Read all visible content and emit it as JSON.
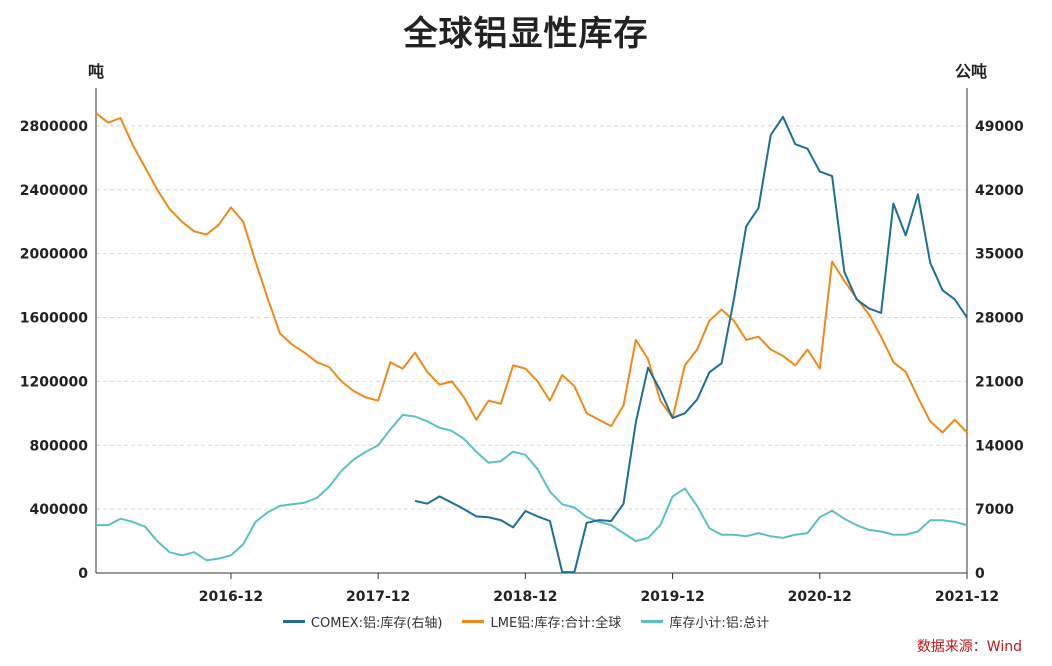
{
  "title": "全球铝显性库存",
  "left_unit": "吨",
  "right_unit": "公吨",
  "source": "数据来源：Wind",
  "chart_data": {
    "type": "line",
    "title": "全球铝显性库存",
    "ylabel": "吨",
    "y2label": "公吨",
    "x_ticks": [
      "2016-12",
      "2017-12",
      "2018-12",
      "2019-12",
      "2020-12",
      "2021-12"
    ],
    "x_range": [
      "2016-01",
      "2021-12"
    ],
    "ylim": [
      0,
      3000000
    ],
    "y_ticks": [
      0,
      400000,
      800000,
      1200000,
      1600000,
      2000000,
      2400000,
      2800000
    ],
    "y_tick_labels": [
      "0",
      "400000",
      "800000",
      "1200000",
      "1600000",
      "2000000",
      "2400000",
      "2800000"
    ],
    "y2lim": [
      0,
      52500
    ],
    "y2_ticks": [
      0,
      7000,
      14000,
      21000,
      28000,
      35000,
      42000,
      49000
    ],
    "y2_tick_labels": [
      "0",
      "7000",
      "14000",
      "21000",
      "28000",
      "35000",
      "42000",
      "49000"
    ],
    "grid": true,
    "legend_position": "bottom",
    "series": [
      {
        "name": "COMEX:铝:库存(右轴)",
        "axis": "right",
        "color": "#1f6e97",
        "points": [
          [
            "2018-03",
            7900
          ],
          [
            "2018-04",
            7600
          ],
          [
            "2018-05",
            8400
          ],
          [
            "2018-06",
            7700
          ],
          [
            "2018-07",
            7000
          ],
          [
            "2018-08",
            6200
          ],
          [
            "2018-09",
            6100
          ],
          [
            "2018-10",
            5800
          ],
          [
            "2018-11",
            5000
          ],
          [
            "2018-12",
            6800
          ],
          [
            "2019-01",
            6200
          ],
          [
            "2019-02",
            5700
          ],
          [
            "2019-03",
            100
          ],
          [
            "2019-04",
            100
          ],
          [
            "2019-05",
            5500
          ],
          [
            "2019-06",
            5800
          ],
          [
            "2019-07",
            5700
          ],
          [
            "2019-08",
            7600
          ],
          [
            "2019-09",
            16500
          ],
          [
            "2019-10",
            22500
          ],
          [
            "2019-11",
            20000
          ],
          [
            "2019-12",
            17000
          ],
          [
            "2020-01",
            17500
          ],
          [
            "2020-02",
            19000
          ],
          [
            "2020-03",
            22000
          ],
          [
            "2020-04",
            23000
          ],
          [
            "2020-05",
            30000
          ],
          [
            "2020-06",
            38000
          ],
          [
            "2020-07",
            40000
          ],
          [
            "2020-08",
            48000
          ],
          [
            "2020-09",
            50000
          ],
          [
            "2020-10",
            47000
          ],
          [
            "2020-11",
            46500
          ],
          [
            "2020-12",
            44000
          ],
          [
            "2021-01",
            43500
          ],
          [
            "2021-02",
            33000
          ],
          [
            "2021-03",
            30000
          ],
          [
            "2021-04",
            29000
          ],
          [
            "2021-05",
            28500
          ],
          [
            "2021-06",
            40500
          ],
          [
            "2021-07",
            37000
          ],
          [
            "2021-08",
            41500
          ],
          [
            "2021-09",
            34000
          ],
          [
            "2021-10",
            31000
          ],
          [
            "2021-11",
            30000
          ],
          [
            "2021-12",
            28000
          ]
        ]
      },
      {
        "name": "LME铝:库存:合计:全球",
        "axis": "left",
        "color": "#f0891a",
        "points": [
          [
            "2016-01",
            2880000
          ],
          [
            "2016-02",
            2820000
          ],
          [
            "2016-03",
            2850000
          ],
          [
            "2016-04",
            2680000
          ],
          [
            "2016-05",
            2540000
          ],
          [
            "2016-06",
            2400000
          ],
          [
            "2016-07",
            2280000
          ],
          [
            "2016-08",
            2200000
          ],
          [
            "2016-09",
            2140000
          ],
          [
            "2016-10",
            2120000
          ],
          [
            "2016-11",
            2180000
          ],
          [
            "2016-12",
            2290000
          ],
          [
            "2017-01",
            2200000
          ],
          [
            "2017-02",
            1950000
          ],
          [
            "2017-03",
            1720000
          ],
          [
            "2017-04",
            1500000
          ],
          [
            "2017-05",
            1430000
          ],
          [
            "2017-06",
            1380000
          ],
          [
            "2017-07",
            1320000
          ],
          [
            "2017-08",
            1290000
          ],
          [
            "2017-09",
            1200000
          ],
          [
            "2017-10",
            1140000
          ],
          [
            "2017-11",
            1100000
          ],
          [
            "2017-12",
            1080000
          ],
          [
            "2018-01",
            1320000
          ],
          [
            "2018-02",
            1280000
          ],
          [
            "2018-03",
            1380000
          ],
          [
            "2018-04",
            1260000
          ],
          [
            "2018-05",
            1180000
          ],
          [
            "2018-06",
            1200000
          ],
          [
            "2018-07",
            1100000
          ],
          [
            "2018-08",
            960000
          ],
          [
            "2018-09",
            1080000
          ],
          [
            "2018-10",
            1060000
          ],
          [
            "2018-11",
            1300000
          ],
          [
            "2018-12",
            1280000
          ],
          [
            "2019-01",
            1200000
          ],
          [
            "2019-02",
            1080000
          ],
          [
            "2019-03",
            1240000
          ],
          [
            "2019-04",
            1170000
          ],
          [
            "2019-05",
            1000000
          ],
          [
            "2019-06",
            960000
          ],
          [
            "2019-07",
            920000
          ],
          [
            "2019-08",
            1050000
          ],
          [
            "2019-09",
            1460000
          ],
          [
            "2019-10",
            1340000
          ],
          [
            "2019-11",
            1080000
          ],
          [
            "2019-12",
            970000
          ],
          [
            "2020-01",
            1300000
          ],
          [
            "2020-02",
            1400000
          ],
          [
            "2020-03",
            1580000
          ],
          [
            "2020-04",
            1650000
          ],
          [
            "2020-05",
            1580000
          ],
          [
            "2020-06",
            1460000
          ],
          [
            "2020-07",
            1480000
          ],
          [
            "2020-08",
            1400000
          ],
          [
            "2020-09",
            1360000
          ],
          [
            "2020-10",
            1300000
          ],
          [
            "2020-11",
            1400000
          ],
          [
            "2020-12",
            1280000
          ],
          [
            "2021-01",
            1950000
          ],
          [
            "2021-02",
            1830000
          ],
          [
            "2021-03",
            1720000
          ],
          [
            "2021-04",
            1620000
          ],
          [
            "2021-05",
            1480000
          ],
          [
            "2021-06",
            1320000
          ],
          [
            "2021-07",
            1260000
          ],
          [
            "2021-08",
            1100000
          ],
          [
            "2021-09",
            950000
          ],
          [
            "2021-10",
            880000
          ],
          [
            "2021-11",
            960000
          ],
          [
            "2021-12",
            880000
          ]
        ]
      },
      {
        "name": "库存小计:铝:总计",
        "axis": "left",
        "color": "#5bc0c4",
        "points": [
          [
            "2016-01",
            300000
          ],
          [
            "2016-02",
            300000
          ],
          [
            "2016-03",
            340000
          ],
          [
            "2016-04",
            320000
          ],
          [
            "2016-05",
            290000
          ],
          [
            "2016-06",
            200000
          ],
          [
            "2016-07",
            130000
          ],
          [
            "2016-08",
            110000
          ],
          [
            "2016-09",
            130000
          ],
          [
            "2016-10",
            80000
          ],
          [
            "2016-11",
            90000
          ],
          [
            "2016-12",
            110000
          ],
          [
            "2017-01",
            180000
          ],
          [
            "2017-02",
            320000
          ],
          [
            "2017-03",
            380000
          ],
          [
            "2017-04",
            420000
          ],
          [
            "2017-05",
            430000
          ],
          [
            "2017-06",
            440000
          ],
          [
            "2017-07",
            470000
          ],
          [
            "2017-08",
            540000
          ],
          [
            "2017-09",
            640000
          ],
          [
            "2017-10",
            710000
          ],
          [
            "2017-11",
            760000
          ],
          [
            "2017-12",
            800000
          ],
          [
            "2018-01",
            900000
          ],
          [
            "2018-02",
            990000
          ],
          [
            "2018-03",
            980000
          ],
          [
            "2018-04",
            950000
          ],
          [
            "2018-05",
            910000
          ],
          [
            "2018-06",
            890000
          ],
          [
            "2018-07",
            840000
          ],
          [
            "2018-08",
            760000
          ],
          [
            "2018-09",
            690000
          ],
          [
            "2018-10",
            700000
          ],
          [
            "2018-11",
            760000
          ],
          [
            "2018-12",
            740000
          ],
          [
            "2019-01",
            650000
          ],
          [
            "2019-02",
            510000
          ],
          [
            "2019-03",
            430000
          ],
          [
            "2019-04",
            410000
          ],
          [
            "2019-05",
            350000
          ],
          [
            "2019-06",
            320000
          ],
          [
            "2019-07",
            300000
          ],
          [
            "2019-08",
            250000
          ],
          [
            "2019-09",
            200000
          ],
          [
            "2019-10",
            220000
          ],
          [
            "2019-11",
            300000
          ],
          [
            "2019-12",
            480000
          ],
          [
            "2020-01",
            530000
          ],
          [
            "2020-02",
            420000
          ],
          [
            "2020-03",
            280000
          ],
          [
            "2020-04",
            240000
          ],
          [
            "2020-05",
            240000
          ],
          [
            "2020-06",
            230000
          ],
          [
            "2020-07",
            250000
          ],
          [
            "2020-08",
            230000
          ],
          [
            "2020-09",
            220000
          ],
          [
            "2020-10",
            240000
          ],
          [
            "2020-11",
            250000
          ],
          [
            "2020-12",
            350000
          ],
          [
            "2021-01",
            390000
          ],
          [
            "2021-02",
            340000
          ],
          [
            "2021-03",
            300000
          ],
          [
            "2021-04",
            270000
          ],
          [
            "2021-05",
            260000
          ],
          [
            "2021-06",
            240000
          ],
          [
            "2021-07",
            240000
          ],
          [
            "2021-08",
            260000
          ],
          [
            "2021-09",
            330000
          ],
          [
            "2021-10",
            330000
          ],
          [
            "2021-11",
            320000
          ],
          [
            "2021-12",
            300000
          ]
        ]
      }
    ]
  }
}
